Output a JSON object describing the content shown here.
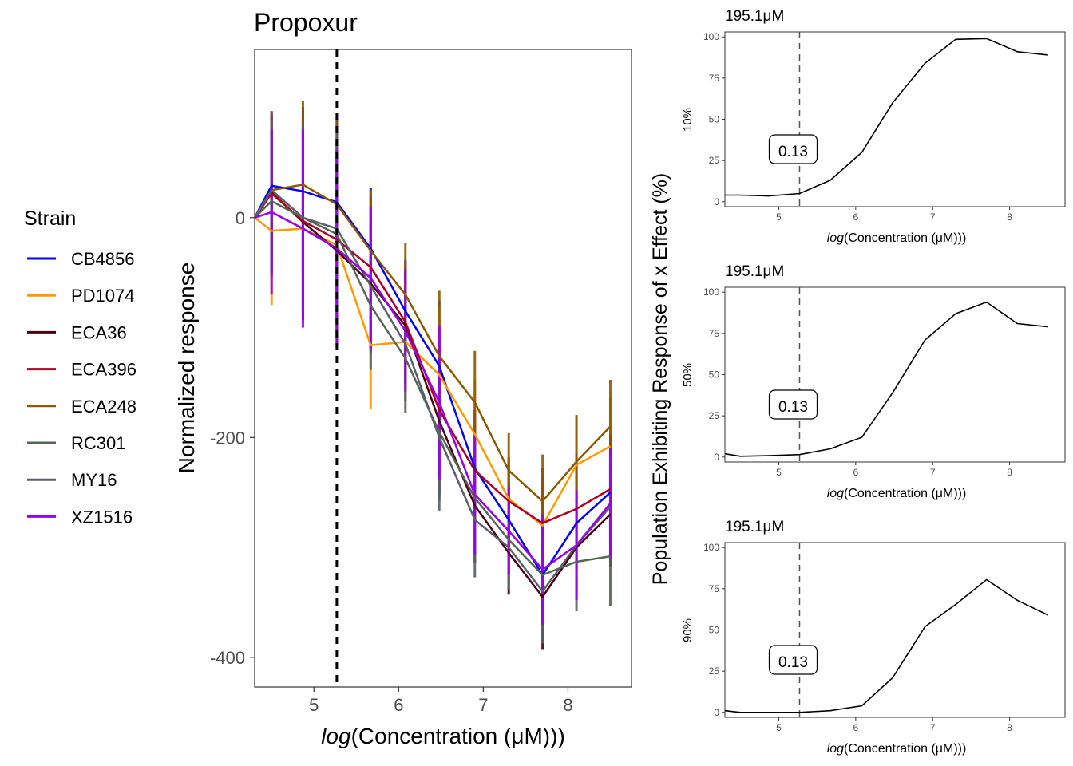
{
  "legend": {
    "title": "Strain"
  },
  "main": {
    "title": "Propoxur",
    "ylabel": "Normalized response",
    "xlabel_fn": "log",
    "xlabel_inner": "Concentration (μM)",
    "vline_x": 5.27,
    "xticks": [
      5,
      6,
      7,
      8
    ],
    "yticks": [
      0,
      -200,
      -400
    ]
  },
  "side": {
    "ylabel": "Population Exhibiting Response of x Effect (%)",
    "xlabel_fn": "log",
    "xlabel_inner": "Concentration (μM)",
    "xticks": [
      5,
      6,
      7,
      8
    ],
    "yticks": [
      0,
      25,
      50,
      75,
      100
    ]
  },
  "chart_data": [
    {
      "type": "line",
      "title": "Propoxur",
      "xlabel": "log(Concentration (μM))",
      "ylabel": "Normalized response",
      "xlim": [
        4.3,
        8.75
      ],
      "ylim": [
        -427,
        153
      ],
      "grid": false,
      "legend_position": "left",
      "x": [
        4.3,
        4.5,
        4.87,
        5.27,
        5.67,
        6.08,
        6.48,
        6.9,
        7.3,
        7.7,
        8.1,
        8.5
      ],
      "series": [
        {
          "name": "CB4856",
          "color": "#0000ff",
          "values": [
            0,
            29,
            24,
            14,
            -28,
            -85,
            -135,
            -228,
            -275,
            -325,
            -278,
            -250
          ]
        },
        {
          "name": "PD1074",
          "color": "#ff9900",
          "values": [
            0,
            -12,
            -10,
            -25,
            -116,
            -113,
            -143,
            -197,
            -256,
            -280,
            -225,
            -208
          ]
        },
        {
          "name": "ECA36",
          "color": "#4b0010",
          "values": [
            0,
            23,
            -4,
            -30,
            -60,
            -98,
            -185,
            -262,
            -305,
            -345,
            -300,
            -270
          ]
        },
        {
          "name": "ECA396",
          "color": "#b00020",
          "values": [
            0,
            22,
            -3,
            -20,
            -45,
            -95,
            -175,
            -230,
            -258,
            -278,
            -265,
            -247
          ]
        },
        {
          "name": "ECA248",
          "color": "#8b5a00",
          "values": [
            0,
            25,
            30,
            12,
            -30,
            -70,
            -126,
            -168,
            -230,
            -258,
            -222,
            -190
          ]
        },
        {
          "name": "RC301",
          "color": "#556655",
          "values": [
            0,
            15,
            0,
            -15,
            -80,
            -128,
            -195,
            -255,
            -293,
            -325,
            -313,
            -308
          ]
        },
        {
          "name": "MY16",
          "color": "#5a5f6a",
          "values": [
            0,
            25,
            0,
            -10,
            -62,
            -115,
            -200,
            -275,
            -300,
            -340,
            -298,
            -263
          ]
        },
        {
          "name": "XZ1516",
          "color": "#9900ee",
          "values": [
            0,
            5,
            -10,
            -28,
            -55,
            -103,
            -168,
            -252,
            -285,
            -320,
            -298,
            -260
          ]
        }
      ]
    },
    {
      "type": "line",
      "title": "195.1μM",
      "ylabel": "10%",
      "xlabel": "log(Concentration (μM))",
      "xlim": [
        4.3,
        8.72
      ],
      "ylim": [
        -3,
        103
      ],
      "grid": false,
      "vline_x": 5.27,
      "annotation": "0.13",
      "x": [
        4.3,
        4.5,
        4.87,
        5.27,
        5.67,
        6.08,
        6.48,
        6.9,
        7.3,
        7.7,
        8.1,
        8.5
      ],
      "values": [
        4,
        4,
        3.5,
        5,
        13,
        30,
        60,
        84,
        98.5,
        99,
        91,
        89
      ]
    },
    {
      "type": "line",
      "title": "195.1μM",
      "ylabel": "50%",
      "xlabel": "log(Concentration (μM))",
      "xlim": [
        4.3,
        8.72
      ],
      "ylim": [
        -3,
        103
      ],
      "grid": false,
      "vline_x": 5.27,
      "annotation": "0.13",
      "x": [
        4.3,
        4.5,
        4.87,
        5.27,
        5.67,
        6.08,
        6.48,
        6.9,
        7.3,
        7.7,
        8.1,
        8.5
      ],
      "values": [
        2,
        0.5,
        0.8,
        1.5,
        5,
        12,
        39,
        71,
        87,
        94,
        81,
        79
      ]
    },
    {
      "type": "line",
      "title": "195.1μM",
      "ylabel": "90%",
      "xlabel": "log(Concentration (μM))",
      "xlim": [
        4.3,
        8.72
      ],
      "ylim": [
        -3,
        103
      ],
      "grid": false,
      "vline_x": 5.27,
      "annotation": "0.13",
      "x": [
        4.3,
        4.5,
        4.87,
        5.27,
        5.67,
        6.08,
        6.48,
        6.9,
        7.3,
        7.7,
        8.1,
        8.5
      ],
      "values": [
        1,
        0,
        0,
        0,
        1,
        4,
        21,
        52,
        65.5,
        80.5,
        68,
        59
      ]
    }
  ]
}
